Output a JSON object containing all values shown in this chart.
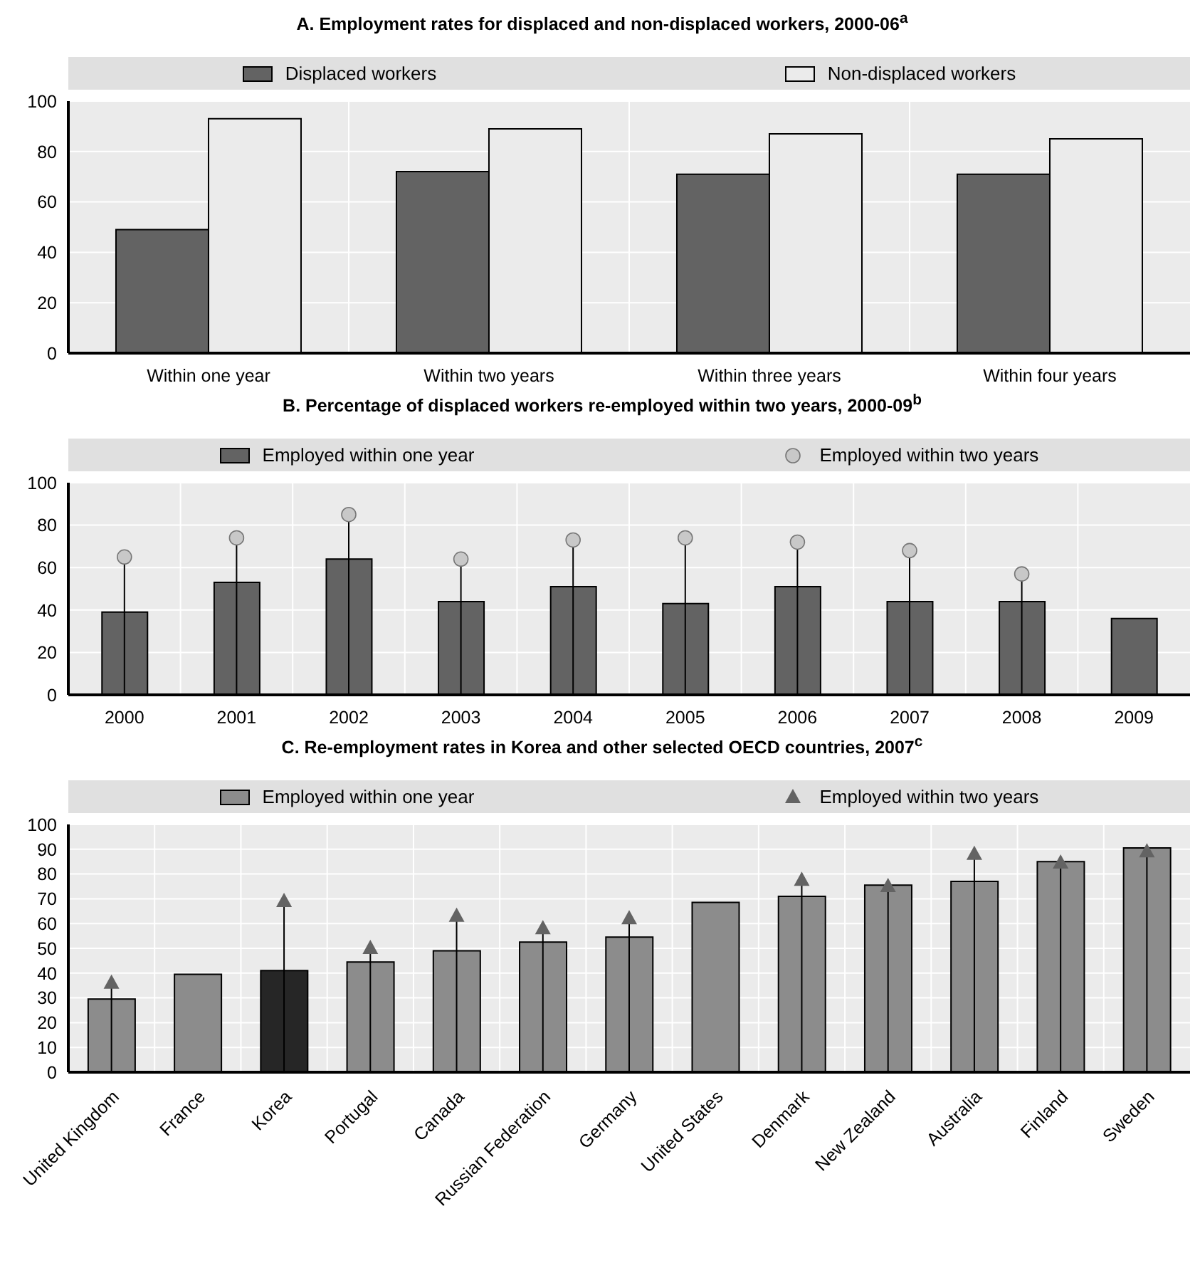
{
  "chart_data": [
    {
      "type": "bar",
      "title": "A. Employment rates for displaced and non-displaced workers, 2000-06$^{a}$",
      "categories": [
        "Within one year",
        "Within two years",
        "Within three years",
        "Within four years"
      ],
      "series": [
        {
          "name": "Displaced workers",
          "color": "#636363",
          "values": [
            49,
            72,
            71,
            71
          ]
        },
        {
          "name": "Non-displaced workers",
          "color": "#ebebeb",
          "values": [
            93,
            89,
            87,
            85
          ]
        }
      ],
      "ylim": [
        0,
        100
      ],
      "yticks": [
        0,
        20,
        40,
        60,
        80,
        100
      ],
      "grid": true,
      "legend": "top"
    },
    {
      "type": "bar",
      "title": "B. Percentage of displaced workers re-employed within two years, 2000-09$^{b}$",
      "categories": [
        "2000",
        "2001",
        "2002",
        "2003",
        "2004",
        "2005",
        "2006",
        "2007",
        "2008",
        "2009"
      ],
      "series": [
        {
          "name": "Employed within one year",
          "color": "#636363",
          "values": [
            39,
            53,
            64,
            44,
            51,
            43,
            51,
            44,
            44,
            36
          ]
        },
        {
          "name": "Employed within two years",
          "type": "lollipop",
          "marker": "circle",
          "color": "#c8c8c8",
          "values": [
            65,
            74,
            85,
            64,
            73,
            74,
            72,
            68,
            57,
            null
          ]
        }
      ],
      "ylim": [
        0,
        100
      ],
      "yticks": [
        0,
        20,
        40,
        60,
        80,
        100
      ],
      "grid": true,
      "legend": "top"
    },
    {
      "type": "bar",
      "title": "C. Re-employment rates in Korea and other selected OECD countries, 2007$^{c}$",
      "categories": [
        "United Kingdom",
        "France",
        "Korea",
        "Portugal",
        "Canada",
        "Russian Federation",
        "Germany",
        "United States",
        "Denmark",
        "New Zealand",
        "Australia",
        "Finland",
        "Sweden"
      ],
      "series": [
        {
          "name": "Employed within one year",
          "color": "#8c8c8c",
          "colors": [
            "#8c8c8c",
            "#8c8c8c",
            "#262626",
            "#8c8c8c",
            "#8c8c8c",
            "#8c8c8c",
            "#8c8c8c",
            "#8c8c8c",
            "#8c8c8c",
            "#8c8c8c",
            "#8c8c8c",
            "#8c8c8c",
            "#8c8c8c"
          ],
          "values": [
            29.5,
            39.5,
            41,
            44.5,
            49,
            52.5,
            54.5,
            68.5,
            71,
            75.5,
            77,
            85,
            90.5
          ]
        },
        {
          "name": "Employed within two years",
          "type": "lollipop",
          "marker": "triangle",
          "color": "#636363",
          "values": [
            36,
            null,
            69,
            50,
            63,
            58,
            62,
            null,
            77.5,
            75,
            88,
            84.5,
            89
          ]
        }
      ],
      "ylim": [
        0,
        100
      ],
      "yticks": [
        0,
        10,
        20,
        30,
        40,
        50,
        60,
        70,
        80,
        90,
        100
      ],
      "grid": true,
      "legend": "top"
    }
  ]
}
